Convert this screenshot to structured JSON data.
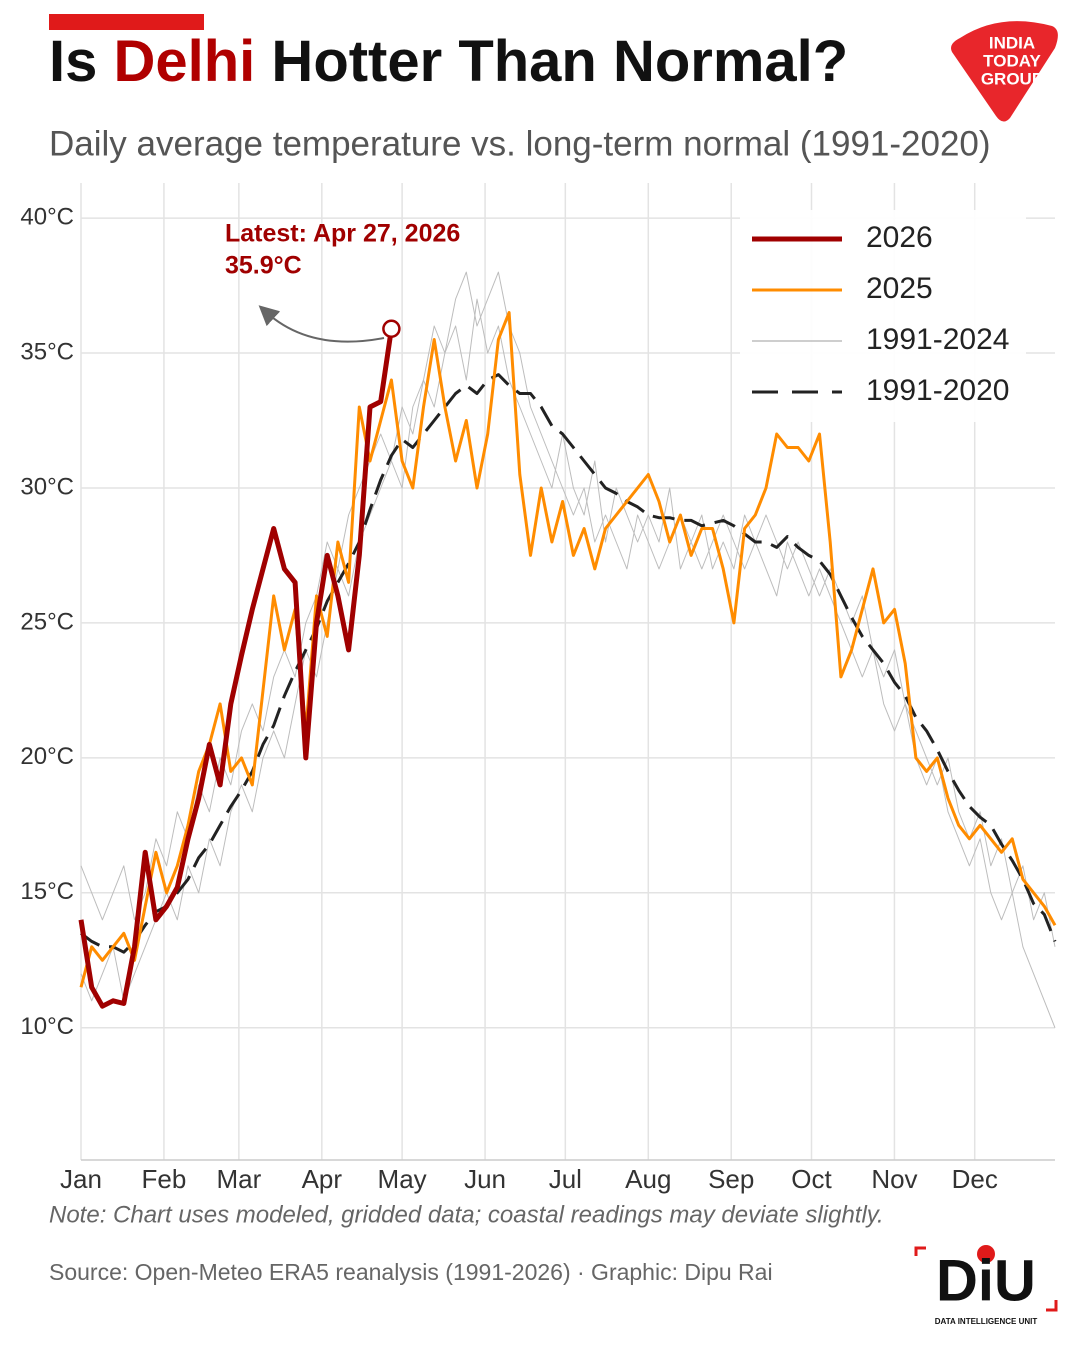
{
  "chart_data": {
    "type": "line",
    "title_parts": [
      "Is ",
      "Delhi",
      " Hotter Than Normal?"
    ],
    "subtitle": "Daily average temperature vs. long-term normal (1991-2020)",
    "note": "Note: Chart uses modeled, gridded data; coastal readings may deviate slightly.",
    "source": "Source: Open-Meteo ERA5 reanalysis (1991-2026) · Graphic: Dipu Rai",
    "annotation": {
      "text": "Latest: Apr 27, 2026",
      "label": "35.9°C"
    },
    "branding": {
      "top": [
        "INDIA",
        "TODAY",
        "GROUP"
      ],
      "bottom": "DiU",
      "bottom_caption": "DATA INTELLIGENCE UNIT"
    },
    "grid": true,
    "x": [
      1,
      5,
      9,
      13,
      17,
      21,
      25,
      29,
      33,
      37,
      41,
      45,
      49,
      53,
      57,
      61,
      65,
      69,
      73,
      77,
      81,
      85,
      89,
      93,
      97,
      101,
      105,
      109,
      113,
      117,
      121,
      125,
      129,
      133,
      137,
      141,
      145,
      149,
      153,
      157,
      161,
      165,
      169,
      173,
      177,
      181,
      185,
      189,
      193,
      197,
      201,
      205,
      209,
      213,
      217,
      221,
      225,
      229,
      233,
      237,
      241,
      245,
      249,
      253,
      257,
      261,
      265,
      269,
      273,
      277,
      281,
      285,
      289,
      293,
      297,
      301,
      305,
      309,
      313,
      317,
      321,
      325,
      329,
      333,
      337,
      341,
      345,
      349,
      353,
      357,
      361,
      365
    ],
    "xlim": [
      1,
      365
    ],
    "xticks": [
      {
        "value": 1,
        "label": "Jan"
      },
      {
        "value": 32,
        "label": "Feb"
      },
      {
        "value": 60,
        "label": "Mar"
      },
      {
        "value": 91,
        "label": "Apr"
      },
      {
        "value": 121,
        "label": "May"
      },
      {
        "value": 152,
        "label": "Jun"
      },
      {
        "value": 182,
        "label": "Jul"
      },
      {
        "value": 213,
        "label": "Aug"
      },
      {
        "value": 244,
        "label": "Sep"
      },
      {
        "value": 274,
        "label": "Oct"
      },
      {
        "value": 305,
        "label": "Nov"
      },
      {
        "value": 335,
        "label": "Dec"
      }
    ],
    "ylim": [
      5.1,
      41.3
    ],
    "yticks": [
      {
        "value": 10,
        "label": "10°C"
      },
      {
        "value": 15,
        "label": "15°C"
      },
      {
        "value": 20,
        "label": "20°C"
      },
      {
        "value": 25,
        "label": "25°C"
      },
      {
        "value": 30,
        "label": "30°C"
      },
      {
        "value": 35,
        "label": "35°C"
      },
      {
        "value": 40,
        "label": "40°C"
      }
    ],
    "series": [
      {
        "name": "2026",
        "color": "#a00000",
        "width": 5,
        "values": [
          14.0,
          11.5,
          10.8,
          11.0,
          10.9,
          13.0,
          16.5,
          14.0,
          14.5,
          15.2,
          17.0,
          18.5,
          20.5,
          19.0,
          22.0,
          23.8,
          25.5,
          27.0,
          28.5,
          27.0,
          26.5,
          20.0,
          25.0,
          27.5,
          26.0,
          24.0,
          27.5,
          33.0,
          33.2,
          35.9,
          null,
          null,
          null,
          null,
          null,
          null,
          null,
          null,
          null,
          null,
          null,
          null,
          null,
          null,
          null,
          null,
          null,
          null,
          null,
          null,
          null,
          null,
          null,
          null,
          null,
          null,
          null,
          null,
          null,
          null,
          null,
          null,
          null,
          null,
          null,
          null,
          null,
          null,
          null,
          null,
          null,
          null,
          null,
          null,
          null,
          null,
          null,
          null,
          null,
          null,
          null,
          null,
          null,
          null,
          null,
          null,
          null,
          null,
          null,
          null,
          null,
          null
        ]
      },
      {
        "name": "2025",
        "color": "#ff8c00",
        "width": 3,
        "values": [
          11.5,
          13.0,
          12.5,
          13.0,
          13.5,
          12.5,
          14.5,
          16.5,
          15.0,
          16.0,
          17.5,
          19.5,
          20.5,
          22.0,
          19.5,
          20.0,
          19.0,
          22.5,
          26.0,
          24.0,
          25.5,
          21.0,
          26.0,
          24.5,
          28.0,
          26.5,
          33.0,
          31.0,
          32.5,
          34.0,
          31.0,
          30.0,
          33.0,
          35.5,
          33.0,
          31.0,
          32.5,
          30.0,
          32.0,
          35.5,
          36.5,
          30.5,
          27.5,
          30.0,
          28.0,
          29.5,
          27.5,
          28.5,
          27.0,
          28.5,
          29.0,
          29.5,
          30.0,
          30.5,
          29.5,
          28.0,
          29.0,
          27.5,
          28.5,
          28.5,
          27.0,
          25.0,
          28.5,
          29.0,
          30.0,
          32.0,
          31.5,
          31.5,
          31.0,
          32.0,
          28.0,
          23.0,
          24.0,
          25.5,
          27.0,
          25.0,
          25.5,
          23.5,
          20.0,
          19.5,
          20.0,
          18.5,
          17.5,
          17.0,
          17.5,
          17.0,
          16.5,
          17.0,
          15.5,
          15.0,
          14.5,
          13.8
        ]
      },
      {
        "name": "1991-2024",
        "color": "#bdbdbd",
        "width": 1,
        "values": [
          [
            12,
            11,
            12,
            13,
            11,
            12,
            13,
            14,
            15,
            14,
            16,
            15,
            17,
            16,
            18,
            19,
            18,
            20,
            21,
            20,
            22,
            24,
            23,
            25,
            27,
            26,
            28,
            29,
            30,
            31,
            33,
            32,
            34,
            33,
            35,
            36,
            34,
            37,
            35,
            36,
            34,
            33,
            32,
            31,
            30,
            32,
            30,
            29,
            31,
            28,
            30,
            29,
            28,
            29,
            28,
            30,
            27,
            28,
            29,
            27,
            28,
            27,
            29,
            28,
            27,
            26,
            28,
            27,
            26,
            27,
            26,
            25,
            24,
            23,
            24,
            22,
            21,
            22,
            20,
            19,
            20,
            18,
            17,
            16,
            17,
            15,
            14,
            15,
            13,
            12,
            11,
            10
          ],
          [
            16,
            15,
            14,
            15,
            16,
            14,
            15,
            17,
            16,
            18,
            17,
            19,
            18,
            20,
            19,
            21,
            22,
            21,
            23,
            24,
            23,
            25,
            26,
            28,
            27,
            29,
            30,
            31,
            32,
            31,
            30,
            33,
            34,
            36,
            35,
            37,
            38,
            36,
            37,
            38,
            36,
            35,
            33,
            32,
            31,
            30,
            29,
            30,
            28,
            29,
            28,
            27,
            29,
            28,
            27,
            28,
            29,
            28,
            27,
            28,
            29,
            28,
            27,
            28,
            29,
            28,
            27,
            28,
            27,
            26,
            27,
            26,
            25,
            26,
            24,
            23,
            24,
            22,
            21,
            20,
            19,
            20,
            18,
            17,
            18,
            16,
            17,
            15,
            16,
            14,
            15,
            13
          ]
        ]
      },
      {
        "name": "1991-2020",
        "color": "#222222",
        "width": 3,
        "dashed": true,
        "values": [
          13.5,
          13.2,
          13.0,
          13.0,
          12.8,
          13.2,
          13.8,
          14.3,
          14.5,
          15.0,
          15.5,
          16.3,
          16.8,
          17.5,
          18.2,
          18.8,
          19.5,
          20.5,
          21.2,
          22.3,
          23.2,
          24.0,
          24.8,
          25.8,
          26.5,
          27.2,
          28.0,
          29.2,
          30.3,
          31.2,
          31.8,
          31.5,
          32.0,
          32.5,
          33.0,
          33.5,
          33.8,
          33.5,
          34.0,
          34.2,
          33.8,
          33.5,
          33.5,
          33.0,
          32.3,
          32.0,
          31.5,
          31.0,
          30.5,
          30.0,
          29.8,
          29.5,
          29.3,
          29.0,
          28.9,
          28.9,
          28.8,
          28.8,
          28.6,
          28.7,
          28.8,
          28.6,
          28.3,
          28.0,
          28.0,
          27.8,
          28.2,
          27.8,
          27.5,
          27.3,
          26.8,
          26.0,
          25.2,
          24.5,
          24.0,
          23.5,
          22.8,
          22.3,
          21.5,
          21.0,
          20.3,
          19.5,
          18.8,
          18.2,
          17.8,
          17.5,
          16.8,
          16.2,
          15.5,
          14.6,
          14.2,
          13.2
        ]
      }
    ]
  }
}
